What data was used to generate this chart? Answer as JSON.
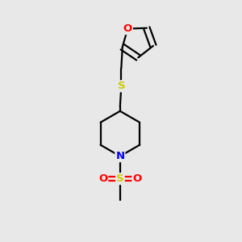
{
  "background_color": "#e8e8e8",
  "bond_color": "#000000",
  "line_width": 1.6,
  "atom_colors": {
    "O": "#ff0000",
    "S": "#cccc00",
    "N": "#0000ff"
  },
  "figsize": [
    3.0,
    3.0
  ],
  "dpi": 100
}
